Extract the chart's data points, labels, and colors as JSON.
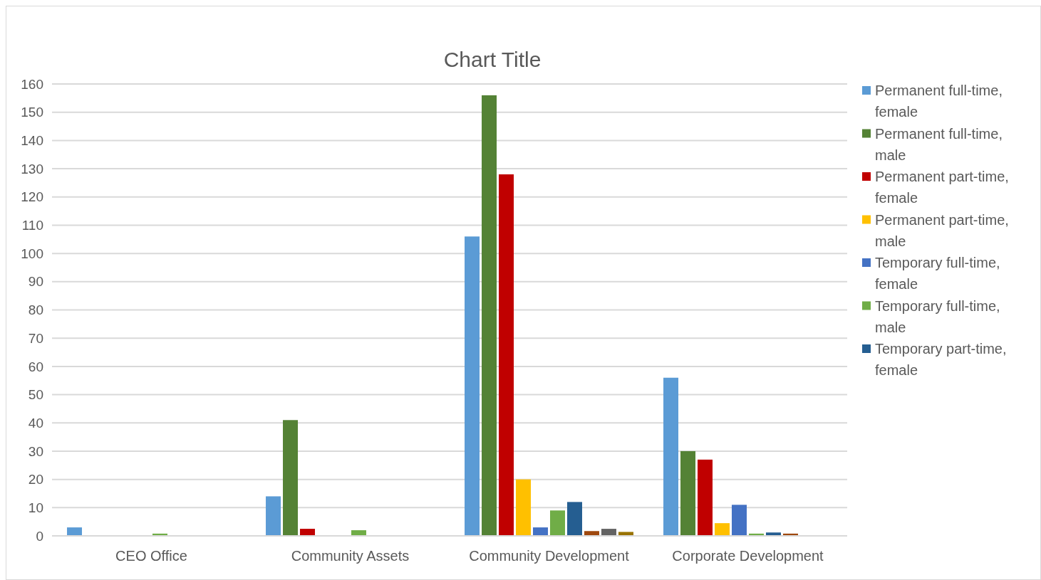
{
  "chart_data": {
    "type": "bar",
    "title": "Chart Title",
    "categories": [
      "CEO Office",
      "Community Assets",
      "Community Development",
      "Corporate Development"
    ],
    "series": [
      {
        "name": "Permanent full-time, female",
        "color": "#5b9bd5",
        "values": [
          3,
          14,
          106,
          56
        ]
      },
      {
        "name": "Permanent full-time, male",
        "color": "#548235",
        "values": [
          null,
          41,
          156,
          30
        ]
      },
      {
        "name": "Permanent part-time, female",
        "color": "#c00000",
        "values": [
          null,
          2.5,
          128,
          27
        ]
      },
      {
        "name": "Permanent part-time, male",
        "color": "#ffc000",
        "values": [
          null,
          null,
          20,
          4.5
        ]
      },
      {
        "name": "Temporary full-time, female",
        "color": "#4472c4",
        "values": [
          null,
          null,
          3,
          11
        ]
      },
      {
        "name": "Temporary full-time, male",
        "color": "#70ad47",
        "values": [
          0.8,
          2,
          9,
          0.8
        ]
      },
      {
        "name": "Temporary part-time, female",
        "color": "#255e91",
        "values": [
          null,
          null,
          12,
          1.2
        ]
      },
      {
        "color": "#9e480e",
        "values": [
          null,
          null,
          1.7,
          0.8
        ]
      },
      {
        "color": "#636363",
        "values": [
          null,
          null,
          2.5,
          null
        ]
      },
      {
        "color": "#997300",
        "values": [
          null,
          null,
          1.4,
          null
        ]
      }
    ],
    "ylim": [
      0,
      160
    ],
    "yticks": [
      0,
      10,
      20,
      30,
      40,
      50,
      60,
      70,
      80,
      90,
      100,
      110,
      120,
      130,
      140,
      150,
      160
    ],
    "grid": "y",
    "legend": "right"
  }
}
